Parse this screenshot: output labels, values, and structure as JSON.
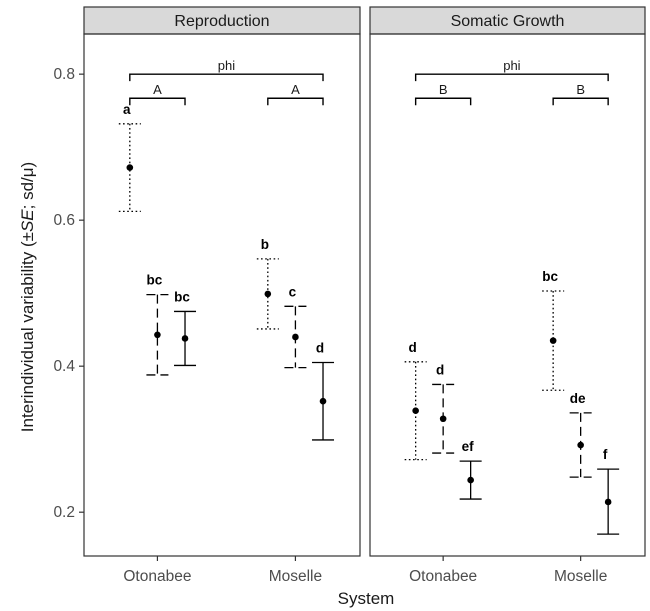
{
  "chart_data": {
    "type": "scatter",
    "subtype": "point-with-error-bars",
    "xlabel": "System",
    "ylabel_prefix": "Interindividual variability (±",
    "ylabel_italic": "SE",
    "ylabel_suffix": "; sd/μ)",
    "ylim": [
      0.14,
      0.855
    ],
    "yticks": [
      0.2,
      0.4,
      0.6,
      0.8
    ],
    "ytick_labels": [
      "0.2",
      "0.4",
      "0.6",
      "0.8"
    ],
    "grid": false,
    "legend": "none",
    "categories": [
      "Otonabee",
      "Moselle"
    ],
    "line_styles": [
      "dotted",
      "dashed",
      "solid"
    ],
    "colors": {
      "panel_strip": "#d9d9d9",
      "border": "#333333",
      "point": "#000000",
      "text": "#1a1a1a"
    },
    "panels": [
      {
        "title": "Reproduction",
        "groups": [
          {
            "category": "Otonabee",
            "points": [
              {
                "y": 0.672,
                "lower": 0.612,
                "upper": 0.732,
                "label": "a"
              },
              {
                "y": 0.443,
                "lower": 0.388,
                "upper": 0.498,
                "label": "bc"
              },
              {
                "y": 0.438,
                "lower": 0.401,
                "upper": 0.475,
                "label": "bc"
              }
            ]
          },
          {
            "category": "Moselle",
            "points": [
              {
                "y": 0.499,
                "lower": 0.451,
                "upper": 0.547,
                "label": "b"
              },
              {
                "y": 0.44,
                "lower": 0.398,
                "upper": 0.482,
                "label": "c"
              },
              {
                "y": 0.352,
                "lower": 0.299,
                "upper": 0.405,
                "label": "d"
              }
            ]
          }
        ],
        "brackets": [
          {
            "label": "phi",
            "from": 0,
            "to": 1,
            "y": 0.8
          },
          {
            "label": "A",
            "group": 0,
            "y": 0.767
          },
          {
            "label": "A",
            "group": 1,
            "y": 0.767
          }
        ]
      },
      {
        "title": "Somatic Growth",
        "groups": [
          {
            "category": "Otonabee",
            "points": [
              {
                "y": 0.339,
                "lower": 0.272,
                "upper": 0.406,
                "label": "d"
              },
              {
                "y": 0.328,
                "lower": 0.281,
                "upper": 0.375,
                "label": "d"
              },
              {
                "y": 0.244,
                "lower": 0.218,
                "upper": 0.27,
                "label": "ef"
              }
            ]
          },
          {
            "category": "Moselle",
            "points": [
              {
                "y": 0.435,
                "lower": 0.367,
                "upper": 0.503,
                "label": "bc"
              },
              {
                "y": 0.292,
                "lower": 0.248,
                "upper": 0.336,
                "label": "de"
              },
              {
                "y": 0.214,
                "lower": 0.17,
                "upper": 0.259,
                "label": "f"
              }
            ]
          }
        ],
        "brackets": [
          {
            "label": "phi",
            "from": 0,
            "to": 1,
            "y": 0.8
          },
          {
            "label": "B",
            "group": 0,
            "y": 0.767
          },
          {
            "label": "B",
            "group": 1,
            "y": 0.767
          }
        ]
      }
    ]
  }
}
